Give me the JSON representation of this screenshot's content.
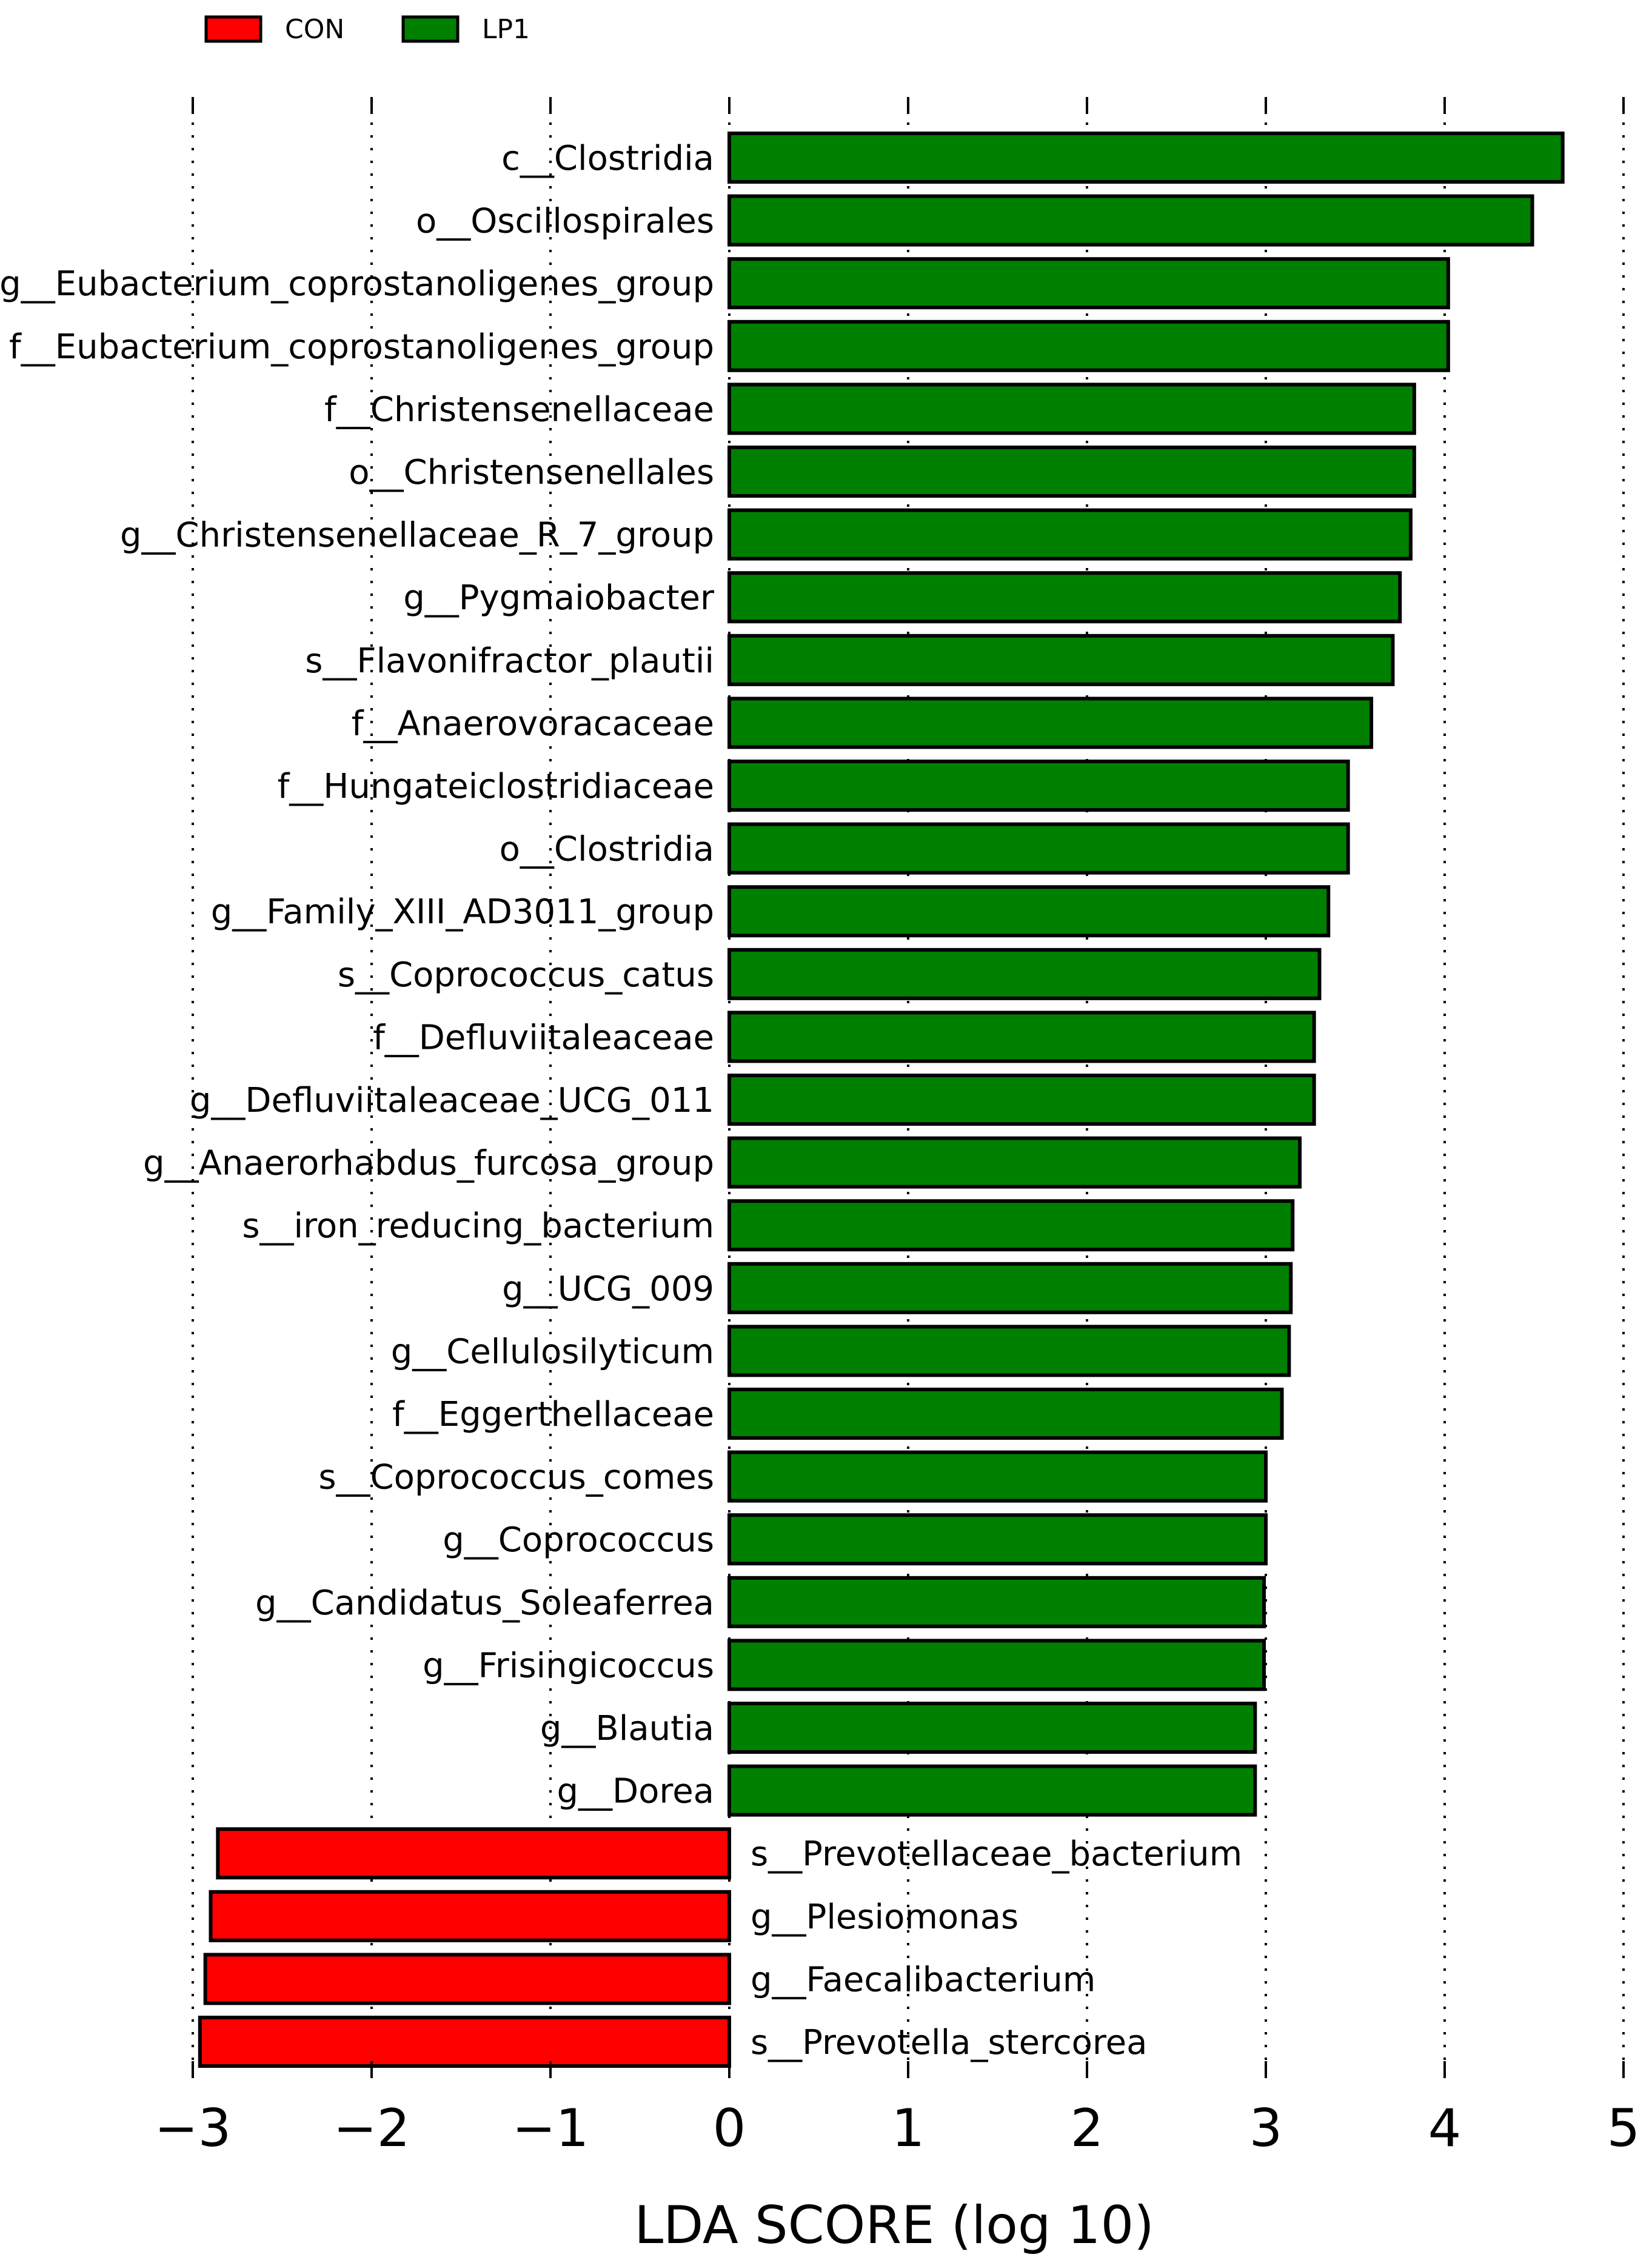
{
  "chart_data": {
    "type": "bar",
    "orientation": "horizontal",
    "title": "",
    "xlabel": "LDA SCORE (log 10)",
    "ylabel": "",
    "xlim": [
      -3,
      5
    ],
    "x_ticks": [
      -3,
      -2,
      -1,
      0,
      1,
      2,
      3,
      4,
      5
    ],
    "x_tick_labels": [
      "−3",
      "−2",
      "−1",
      "0",
      "1",
      "2",
      "3",
      "4",
      "5"
    ],
    "grid": "vertical dotted at each tick",
    "legend_position": "top-left",
    "legend": [
      {
        "name": "CON",
        "color": "#ff0000"
      },
      {
        "name": "LP1",
        "color": "#008000"
      }
    ],
    "categories": [
      "c__Clostridia",
      "o__Oscillospirales",
      "g__Eubacterium_coprostanoligenes_group",
      "f__Eubacterium_coprostanoligenes_group",
      "f__Christensenellaceae",
      "o__Christensenellales",
      "g__Christensenellaceae_R_7_group",
      "g__Pygmaiobacter",
      "s__Flavonifractor_plautii",
      "f__Anaerovoracaceae",
      "f__Hungateiclostridiaceae",
      "o__Clostridia",
      "g__Family_XIII_AD3011_group",
      "s__Coprococcus_catus",
      "f__Defluviitaleaceae",
      "g__Defluviitaleaceae_UCG_011",
      "g__Anaerorhabdus_furcosa_group",
      "s__iron_reducing_bacterium",
      "g__UCG_009",
      "g__Cellulosilyticum",
      "f__Eggerthellaceae",
      "s__Coprococcus_comes",
      "g__Coprococcus",
      "g__Candidatus_Soleaferrea",
      "g__Frisingicoccus",
      "g__Blautia",
      "g__Dorea",
      "s__Prevotellaceae_bacterium",
      "g__Plesiomonas",
      "g__Faecalibacterium",
      "s__Prevotella_stercorea"
    ],
    "values": [
      4.66,
      4.49,
      4.02,
      4.02,
      3.83,
      3.83,
      3.81,
      3.75,
      3.71,
      3.59,
      3.46,
      3.46,
      3.35,
      3.3,
      3.27,
      3.27,
      3.19,
      3.15,
      3.14,
      3.13,
      3.09,
      3.0,
      3.0,
      2.99,
      2.99,
      2.94,
      2.94,
      -2.86,
      -2.9,
      -2.93,
      -2.96
    ],
    "groups": [
      "LP1",
      "LP1",
      "LP1",
      "LP1",
      "LP1",
      "LP1",
      "LP1",
      "LP1",
      "LP1",
      "LP1",
      "LP1",
      "LP1",
      "LP1",
      "LP1",
      "LP1",
      "LP1",
      "LP1",
      "LP1",
      "LP1",
      "LP1",
      "LP1",
      "LP1",
      "LP1",
      "LP1",
      "LP1",
      "LP1",
      "LP1",
      "CON",
      "CON",
      "CON",
      "CON"
    ]
  }
}
